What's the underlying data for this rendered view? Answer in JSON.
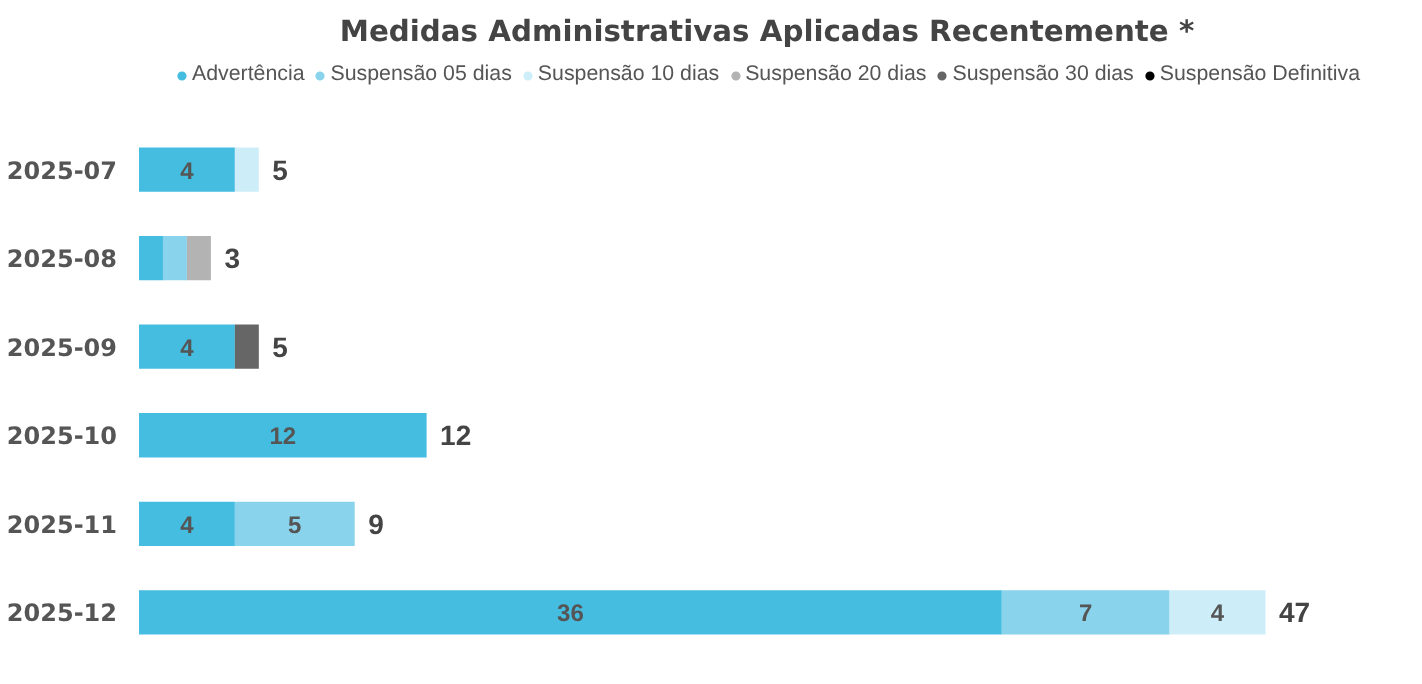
{
  "chart_data": {
    "type": "bar",
    "orientation": "horizontal",
    "stacked": true,
    "title": "Medidas Administrativas Aplicadas Recentemente *",
    "categories": [
      "2025-07",
      "2025-08",
      "2025-09",
      "2025-10",
      "2025-11",
      "2025-12"
    ],
    "series": [
      {
        "name": "Advertência",
        "color": "#45bde0",
        "values": [
          4,
          1,
          4,
          12,
          4,
          36
        ],
        "value_labels": [
          "4",
          null,
          "4",
          "12",
          "4",
          "36"
        ]
      },
      {
        "name": "Suspensão 05 dias",
        "color": "#8ad3ec",
        "values": [
          null,
          1,
          null,
          null,
          5,
          7
        ],
        "value_labels": [
          null,
          null,
          null,
          null,
          "5",
          "7"
        ]
      },
      {
        "name": "Suspensão 10 dias",
        "color": "#cdeef8",
        "values": [
          1,
          null,
          null,
          null,
          null,
          4
        ],
        "value_labels": [
          null,
          null,
          null,
          null,
          null,
          "4"
        ]
      },
      {
        "name": "Suspensão 20 dias",
        "color": "#b3b3b3",
        "values": [
          null,
          1,
          null,
          null,
          null,
          null
        ]
      },
      {
        "name": "Suspensão 30 dias",
        "color": "#666666",
        "values": [
          null,
          null,
          1,
          null,
          null,
          null
        ]
      },
      {
        "name": "Suspensão Definitiva",
        "color": "#000000",
        "values": [
          null,
          null,
          null,
          null,
          null,
          null
        ]
      }
    ],
    "totals": [
      "5",
      "3",
      "5",
      "12",
      "9",
      "47"
    ],
    "legend": "top",
    "grid": false
  }
}
